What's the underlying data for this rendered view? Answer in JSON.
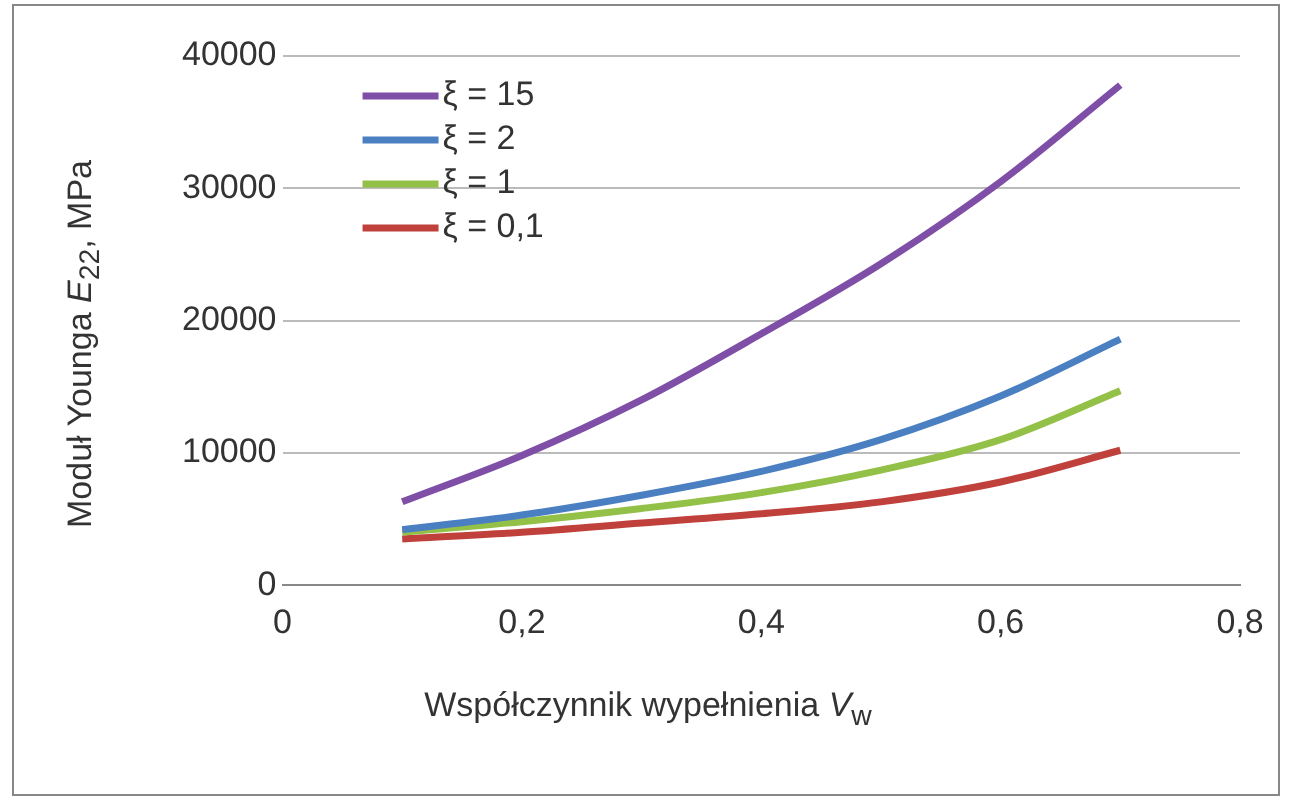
{
  "chart_data": {
    "type": "line",
    "xlabel": "Współczynnik wypełnienia V$_{w}$",
    "ylabel": "Moduł Younga E$_{22}$, MPa",
    "x": [
      0.1,
      0.2,
      0.3,
      0.4,
      0.5,
      0.6,
      0.7
    ],
    "series": [
      {
        "name": "ξ = 15",
        "color": "#7f4fa8",
        "values": [
          6300,
          9800,
          14000,
          19000,
          24300,
          30500,
          37800
        ]
      },
      {
        "name": "ξ = 2",
        "color": "#4a7fc1",
        "values": [
          4200,
          5300,
          6800,
          8600,
          11000,
          14300,
          18600
        ]
      },
      {
        "name": "ξ = 1",
        "color": "#93c047",
        "values": [
          4000,
          4800,
          5800,
          7000,
          8700,
          11000,
          14700
        ]
      },
      {
        "name": "ξ = 0,1",
        "color": "#c0403c",
        "values": [
          3500,
          4000,
          4700,
          5400,
          6300,
          7800,
          10200
        ]
      }
    ],
    "xlim": [
      0,
      0.8
    ],
    "xticks": [
      0,
      {
        "value": 0.2,
        "label": "0,2"
      },
      {
        "value": 0.4,
        "label": "0,4"
      },
      {
        "value": 0.6,
        "label": "0,6"
      },
      {
        "value": 0.8,
        "label": "0,8"
      }
    ],
    "ylim": [
      0,
      40000
    ],
    "yticks": [
      0,
      10000,
      20000,
      30000,
      40000
    ],
    "grid": "y",
    "legend": "top left",
    "marker": "none",
    "line_style": "solid"
  }
}
